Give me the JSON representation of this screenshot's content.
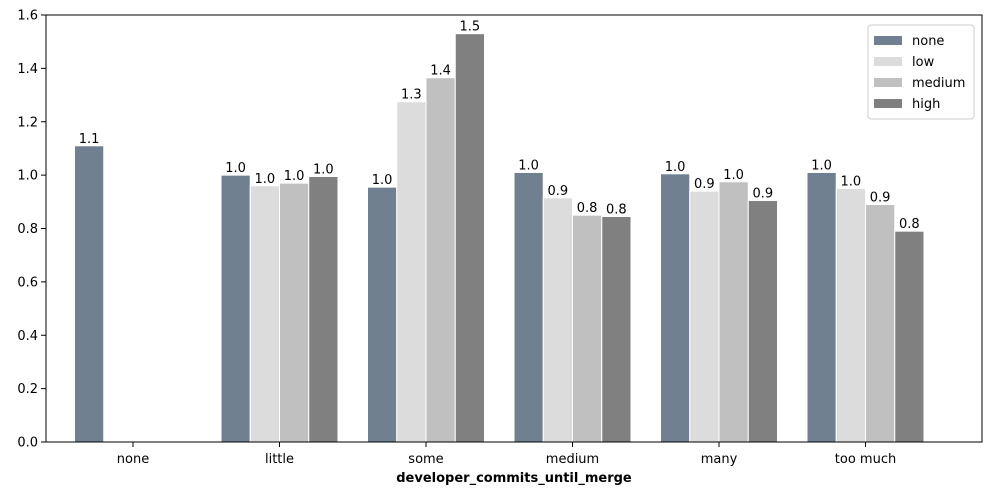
{
  "chart_data": {
    "type": "bar",
    "xlabel": "developer_commits_until_merge",
    "ylabel": "",
    "title": "",
    "categories": [
      "none",
      "little",
      "some",
      "medium",
      "many",
      "too much"
    ],
    "ylim": [
      0,
      1.6
    ],
    "yticks": [
      0.0,
      0.2,
      0.4,
      0.6,
      0.8,
      1.0,
      1.2,
      1.4,
      1.6
    ],
    "ytick_labels": [
      "0.0",
      "0.2",
      "0.4",
      "0.6",
      "0.8",
      "1.0",
      "1.2",
      "1.4",
      "1.6"
    ],
    "grid": false,
    "legend_position": "top-right",
    "series": [
      {
        "name": "none",
        "color": "#708090",
        "values": [
          1.11,
          1.0,
          0.955,
          1.01,
          1.005,
          1.01
        ],
        "labels": [
          "1.1",
          "1.0",
          "1.0",
          "1.0",
          "1.0",
          "1.0"
        ]
      },
      {
        "name": "low",
        "color": "#dcdcdc",
        "values": [
          null,
          0.96,
          1.275,
          0.915,
          0.94,
          0.95
        ],
        "labels": [
          null,
          "1.0",
          "1.3",
          "0.9",
          "0.9",
          "1.0"
        ]
      },
      {
        "name": "medium",
        "color": "#c0c0c0",
        "values": [
          null,
          0.97,
          1.365,
          0.85,
          0.975,
          0.89
        ],
        "labels": [
          null,
          "1.0",
          "1.4",
          "0.8",
          "1.0",
          "0.9"
        ]
      },
      {
        "name": "high",
        "color": "#808080",
        "values": [
          null,
          0.995,
          1.53,
          0.845,
          0.905,
          0.79
        ],
        "labels": [
          null,
          "1.0",
          "1.5",
          "0.8",
          "0.9",
          "0.8"
        ]
      }
    ]
  }
}
